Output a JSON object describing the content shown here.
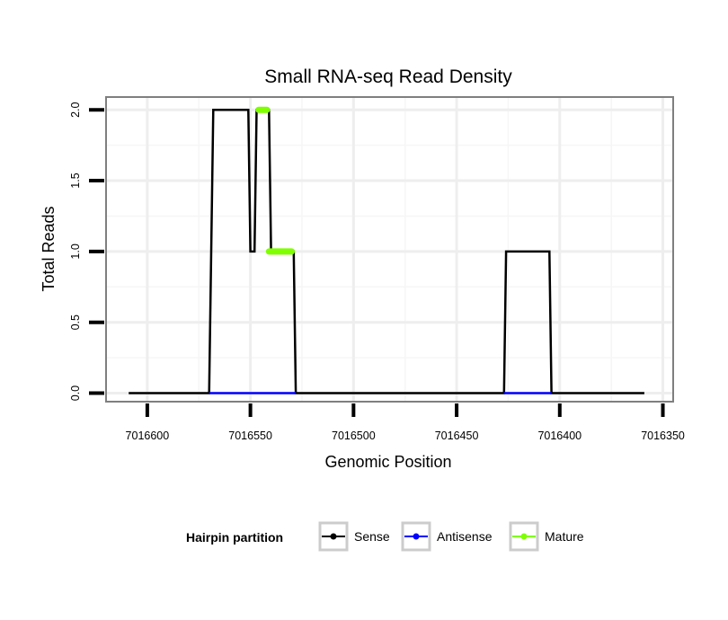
{
  "chart_data": {
    "type": "line",
    "title": "Small RNA-seq Read Density",
    "xlabel": "Genomic Position",
    "ylabel": "Total Reads",
    "xlim": [
      7016620,
      7016345
    ],
    "x_reversed": true,
    "ylim": [
      -0.06,
      2.09
    ],
    "x_ticks": [
      7016600,
      7016550,
      7016500,
      7016450,
      7016400,
      7016350
    ],
    "x_tick_labels": [
      "7016600",
      "7016550",
      "7016500",
      "7016450",
      "7016400",
      "7016350"
    ],
    "y_ticks": [
      0,
      0.5,
      1,
      1.5,
      2
    ],
    "y_tick_labels": [
      "0.0",
      "0.5",
      "1.0",
      "1.5",
      "2.0"
    ],
    "grid": true,
    "legend": {
      "title": "Hairpin partition",
      "position": "bottom",
      "entries": [
        "Sense",
        "Antisense",
        "Mature"
      ]
    },
    "series": [
      {
        "name": "Sense",
        "color": "#000000",
        "points": [
          [
            7016609,
            0
          ],
          [
            7016570,
            0
          ],
          [
            7016568,
            2
          ],
          [
            7016551,
            2
          ],
          [
            7016550,
            1
          ],
          [
            7016548,
            1
          ],
          [
            7016547,
            2
          ],
          [
            7016541,
            2
          ],
          [
            7016540,
            1
          ],
          [
            7016529,
            1
          ],
          [
            7016528,
            0
          ],
          [
            7016427,
            0
          ],
          [
            7016426,
            1
          ],
          [
            7016405,
            1
          ],
          [
            7016404,
            0
          ],
          [
            7016359,
            0
          ]
        ]
      },
      {
        "name": "Antisense",
        "color": "#0000ff",
        "points": [
          [
            7016570,
            0
          ],
          [
            7016528,
            0
          ],
          [
            7016427,
            0
          ],
          [
            7016404,
            0
          ]
        ]
      },
      {
        "name": "Mature",
        "color": "#7fff00",
        "segments": [
          [
            [
              7016546,
              2
            ],
            [
              7016542,
              2
            ]
          ],
          [
            [
              7016541,
              1
            ],
            [
              7016530,
              1
            ]
          ]
        ]
      }
    ]
  }
}
